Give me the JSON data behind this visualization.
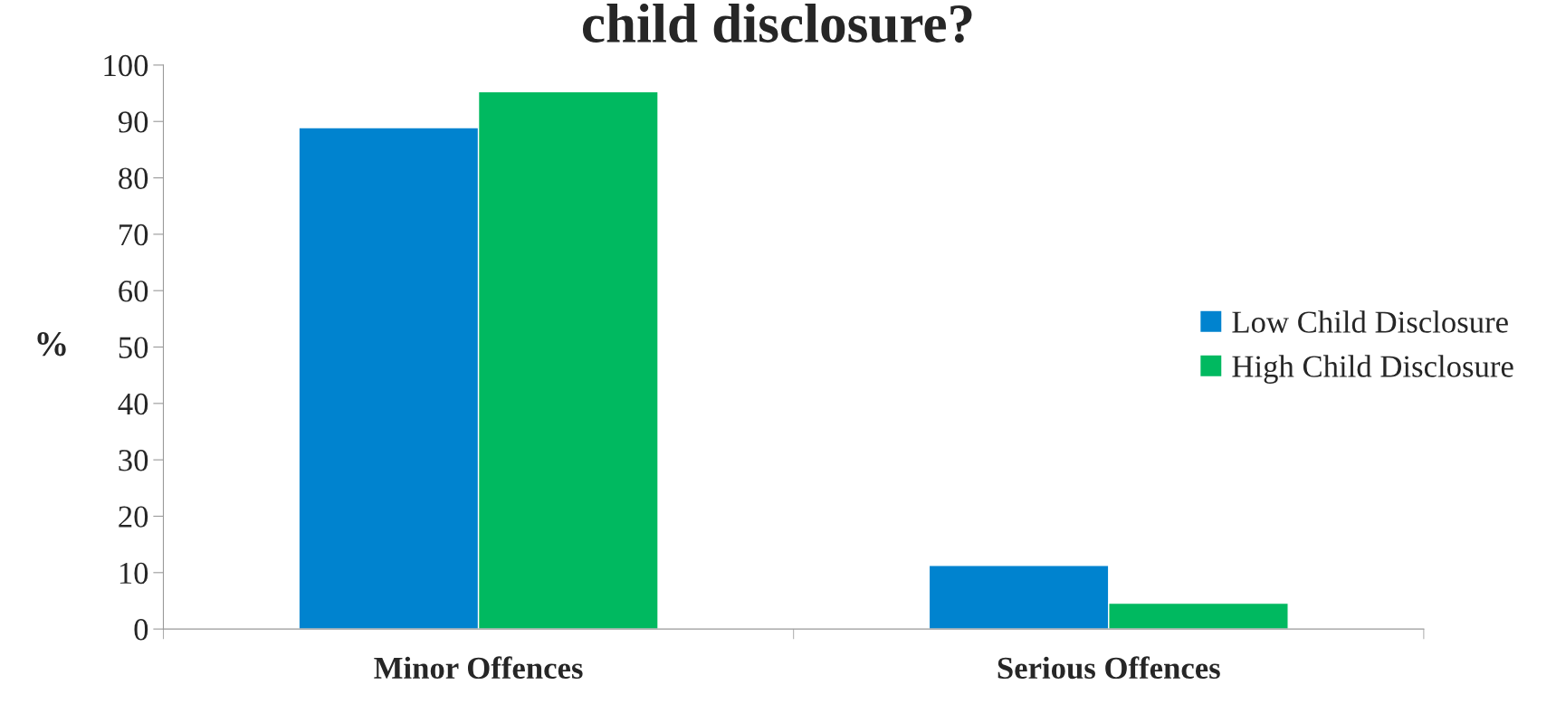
{
  "chart_data": {
    "type": "bar",
    "title": "child disclosure?",
    "ylabel": "%",
    "categories": [
      "Minor Offences",
      "Serious Offences"
    ],
    "series": [
      {
        "name": "Low Child Disclosure",
        "color": "#0083cf",
        "values": [
          88.9,
          11.3
        ]
      },
      {
        "name": "High Child Disclosure",
        "color": "#00b960",
        "values": [
          95.3,
          4.6
        ]
      }
    ],
    "ylim": [
      0,
      100
    ],
    "yticks": [
      0,
      10,
      20,
      30,
      40,
      50,
      60,
      70,
      80,
      90,
      100
    ],
    "grid": false,
    "legend": "right"
  }
}
